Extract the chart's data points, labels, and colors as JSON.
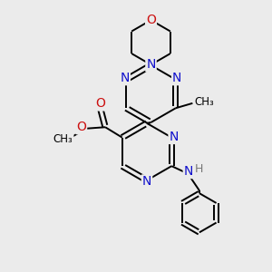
{
  "bg_color": "#ebebeb",
  "bond_color": "#000000",
  "bond_width": 1.4,
  "atom_colors": {
    "N": "#1010cc",
    "O": "#cc1010",
    "H": "#777777",
    "C": "#000000"
  },
  "figsize": [
    3.0,
    3.0
  ],
  "dpi": 100
}
